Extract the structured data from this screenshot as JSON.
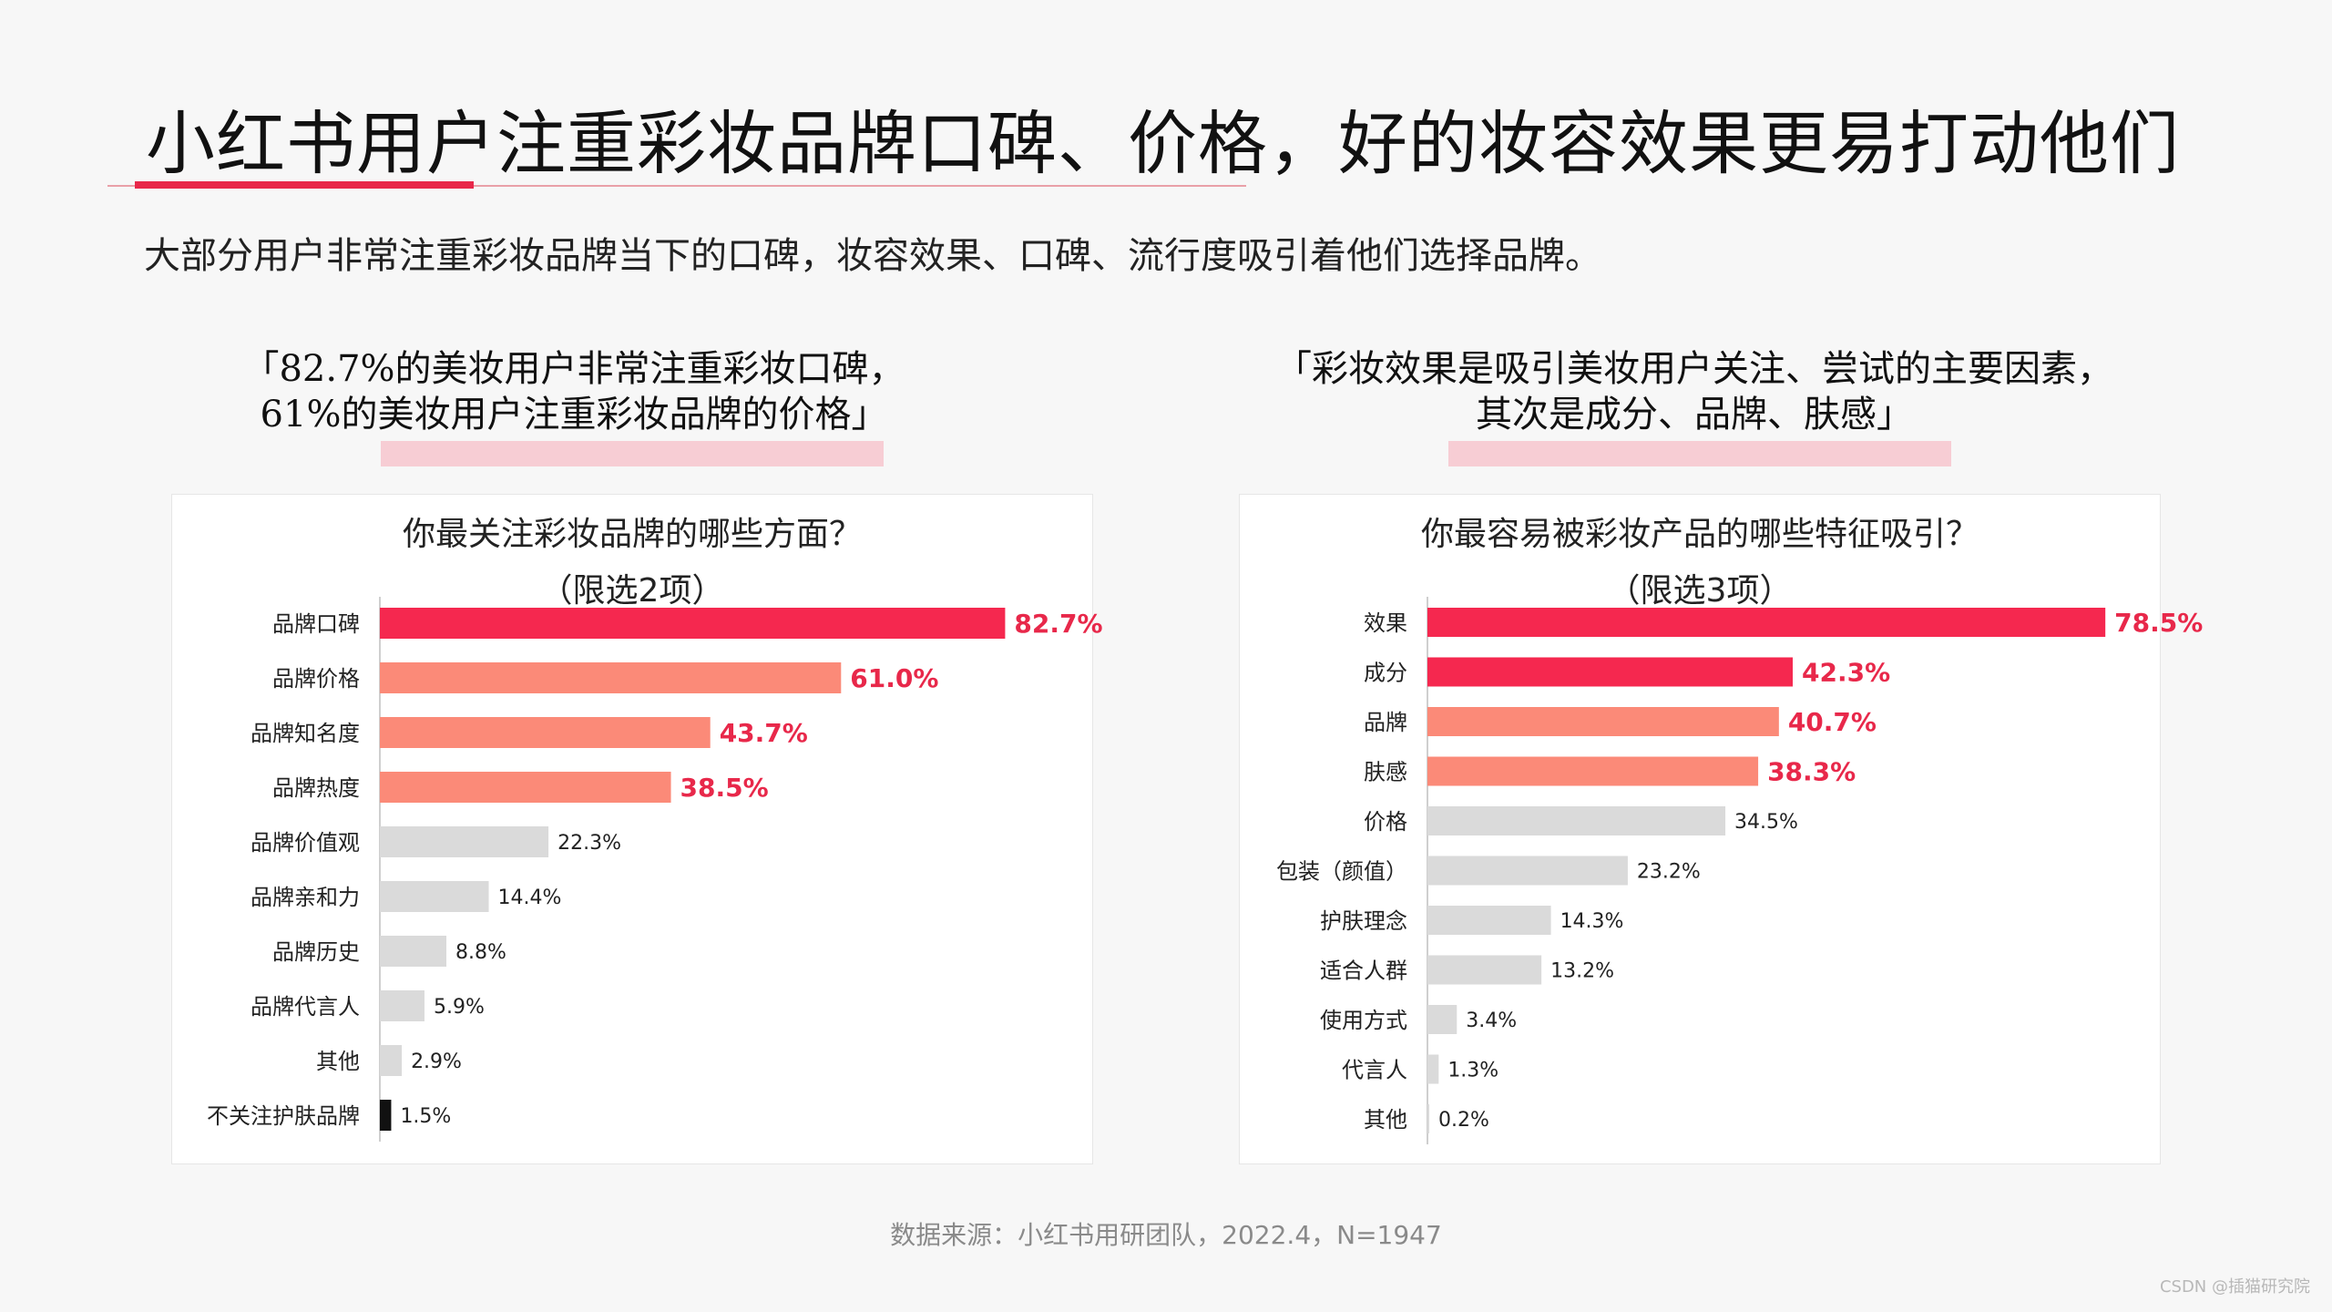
{
  "page": {
    "title": "小红书用户注重彩妆品牌口碑、价格，好的妆容效果更易打动他们",
    "subtitle": "大部分用户非常注重彩妆品牌当下的口碑，妆容效果、口碑、流行度吸引着他们选择品牌。",
    "source": "数据来源：小红书用研团队，2022.4，N=1947",
    "watermark": "CSDN @插猫研究院",
    "accent_color": "#e8284a"
  },
  "left": {
    "quote_line1": "「82.7%的美妆用户非常注重彩妆口碑，",
    "quote_line2": "61%的美妆用户注重彩妆品牌的价格」",
    "question": "你最关注彩妆品牌的哪些方面？",
    "note": "（限选2项）"
  },
  "right": {
    "quote_line1": "「彩妆效果是吸引美妆用户关注、尝试的主要因素，",
    "quote_line2": "其次是成分、品牌、肤感」",
    "question": "你最容易被彩妆产品的哪些特征吸引？",
    "note": "（限选3项）"
  },
  "chart_data": [
    {
      "type": "bar",
      "orientation": "horizontal",
      "title": "你最关注彩妆品牌的哪些方面？（限选2项）",
      "categories": [
        "品牌口碑",
        "品牌价格",
        "品牌知名度",
        "品牌热度",
        "品牌价值观",
        "品牌亲和力",
        "品牌历史",
        "品牌代言人",
        "其他",
        "不关注护肤品牌"
      ],
      "values": [
        82.7,
        61.0,
        43.7,
        38.5,
        22.3,
        14.4,
        8.8,
        5.9,
        2.9,
        1.5
      ],
      "labels": [
        "82.7%",
        "61.0%",
        "43.7%",
        "38.5%",
        "22.3%",
        "14.4%",
        "8.8%",
        "5.9%",
        "2.9%",
        "1.5%"
      ],
      "colors": [
        "#f5284f",
        "#fb8a78",
        "#fb8a78",
        "#fb8a78",
        "#dadada",
        "#dadada",
        "#dadada",
        "#dadada",
        "#dadada",
        "#111111"
      ],
      "label_colors": [
        "#e8284a",
        "#e8284a",
        "#e8284a",
        "#e8284a",
        "#222222",
        "#222222",
        "#222222",
        "#222222",
        "#222222",
        "#222222"
      ],
      "xlim": [
        0,
        90
      ]
    },
    {
      "type": "bar",
      "orientation": "horizontal",
      "title": "你最容易被彩妆产品的哪些特征吸引？（限选3项）",
      "categories": [
        "效果",
        "成分",
        "品牌",
        "肤感",
        "价格",
        "包装（颜值）",
        "护肤理念",
        "适合人群",
        "使用方式",
        "代言人",
        "其他"
      ],
      "values": [
        78.5,
        42.3,
        40.7,
        38.3,
        34.5,
        23.2,
        14.3,
        13.2,
        3.4,
        1.3,
        0.2
      ],
      "labels": [
        "78.5%",
        "42.3%",
        "40.7%",
        "38.3%",
        "34.5%",
        "23.2%",
        "14.3%",
        "13.2%",
        "3.4%",
        "1.3%",
        "0.2%"
      ],
      "colors": [
        "#f5284f",
        "#f5284f",
        "#fb8a78",
        "#fb8a78",
        "#dadada",
        "#dadada",
        "#dadada",
        "#dadada",
        "#dadada",
        "#dadada",
        "#dadada"
      ],
      "label_colors": [
        "#e8284a",
        "#e8284a",
        "#e8284a",
        "#e8284a",
        "#222222",
        "#222222",
        "#222222",
        "#222222",
        "#222222",
        "#222222",
        "#222222"
      ],
      "xlim": [
        0,
        88
      ]
    }
  ]
}
